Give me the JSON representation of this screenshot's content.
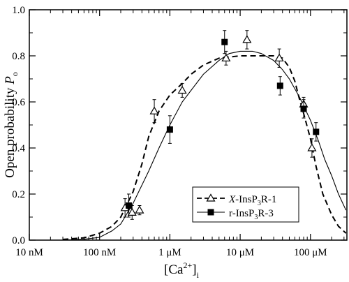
{
  "chart_data": {
    "type": "scatter",
    "xscale": "log",
    "xlim_M": [
      1e-08,
      0.00033
    ],
    "ylim": [
      0,
      1.0
    ],
    "xlabel_main": "[Ca",
    "xlabel_sup": "2+",
    "xlabel_close": "]",
    "xlabel_sub": "i",
    "ylabel_main": "Open probability ",
    "ylabel_italic": "P",
    "ylabel_sub": "o",
    "xticks": [
      {
        "value_M": 1e-08,
        "label": "10 nM"
      },
      {
        "value_M": 1e-07,
        "label": "100 nM"
      },
      {
        "value_M": 1e-06,
        "label": "1 μM"
      },
      {
        "value_M": 1e-05,
        "label": "10 μM"
      },
      {
        "value_M": 0.0001,
        "label": "100 μM"
      }
    ],
    "yticks": [
      {
        "value": 0.0,
        "label": "0.0"
      },
      {
        "value": 0.2,
        "label": "0.2"
      },
      {
        "value": 0.4,
        "label": "0.4"
      },
      {
        "value": 0.6,
        "label": "0.6"
      },
      {
        "value": 0.8,
        "label": "0.8"
      },
      {
        "value": 1.0,
        "label": "1.0"
      }
    ],
    "legend_position": "bottom-right",
    "series": [
      {
        "name_prefix": "X",
        "name_rest": "-InsP",
        "name_sub": "3",
        "name_end": "R-1",
        "marker": "open-triangle",
        "line": "dashed",
        "points": [
          {
            "x_M": 2.3e-07,
            "y": 0.14,
            "err": 0.04
          },
          {
            "x_M": 2.9e-07,
            "y": 0.12,
            "err": 0.03
          },
          {
            "x_M": 3.7e-07,
            "y": 0.13,
            "err": 0.02
          },
          {
            "x_M": 6e-07,
            "y": 0.56,
            "err": 0.05
          },
          {
            "x_M": 1.5e-06,
            "y": 0.65,
            "err": 0.03
          },
          {
            "x_M": 6.3e-06,
            "y": 0.79,
            "err": 0.03
          },
          {
            "x_M": 1.25e-05,
            "y": 0.87,
            "err": 0.04
          },
          {
            "x_M": 3.6e-05,
            "y": 0.79,
            "err": 0.04
          },
          {
            "x_M": 8e-05,
            "y": 0.59,
            "err": 0.03
          },
          {
            "x_M": 0.000105,
            "y": 0.4,
            "err": 0.04
          }
        ],
        "curve": [
          [
            3e-08,
            0.003
          ],
          [
            6e-08,
            0.01
          ],
          [
            1e-07,
            0.03
          ],
          [
            1.5e-07,
            0.06
          ],
          [
            2e-07,
            0.1
          ],
          [
            3e-07,
            0.21
          ],
          [
            4e-07,
            0.33
          ],
          [
            5e-07,
            0.45
          ],
          [
            7e-07,
            0.56
          ],
          [
            1e-06,
            0.63
          ],
          [
            1.5e-06,
            0.68
          ],
          [
            2e-06,
            0.72
          ],
          [
            3e-06,
            0.76
          ],
          [
            5e-06,
            0.79
          ],
          [
            1e-05,
            0.8
          ],
          [
            2e-05,
            0.8
          ],
          [
            3e-05,
            0.8
          ],
          [
            4e-05,
            0.79
          ],
          [
            5e-05,
            0.75
          ],
          [
            6e-05,
            0.69
          ],
          [
            7e-05,
            0.61
          ],
          [
            8e-05,
            0.55
          ],
          [
            0.0001,
            0.44
          ],
          [
            0.00012,
            0.32
          ],
          [
            0.00015,
            0.2
          ],
          [
            0.0002,
            0.11
          ],
          [
            0.00025,
            0.06
          ],
          [
            0.00032,
            0.03
          ]
        ]
      },
      {
        "name_prefix": "",
        "name_rest": "r-InsP",
        "name_sub": "3",
        "name_end": "R-3",
        "marker": "filled-square",
        "line": "solid",
        "points": [
          {
            "x_M": 2.6e-07,
            "y": 0.15,
            "err": 0.05
          },
          {
            "x_M": 1e-06,
            "y": 0.48,
            "err": 0.06
          },
          {
            "x_M": 6e-06,
            "y": 0.86,
            "err": 0.05
          },
          {
            "x_M": 3.7e-05,
            "y": 0.67,
            "err": 0.04
          },
          {
            "x_M": 8e-05,
            "y": 0.57,
            "err": 0.04
          },
          {
            "x_M": 0.00012,
            "y": 0.47,
            "err": 0.04
          }
        ],
        "curve": [
          [
            3e-08,
            0.0
          ],
          [
            6e-08,
            0.004
          ],
          [
            1e-07,
            0.012
          ],
          [
            1.5e-07,
            0.04
          ],
          [
            2e-07,
            0.07
          ],
          [
            3e-07,
            0.16
          ],
          [
            5e-07,
            0.3
          ],
          [
            7e-07,
            0.4
          ],
          [
            1e-06,
            0.5
          ],
          [
            1.5e-06,
            0.6
          ],
          [
            2e-06,
            0.65
          ],
          [
            3e-06,
            0.72
          ],
          [
            5e-06,
            0.78
          ],
          [
            7e-06,
            0.81
          ],
          [
            1e-05,
            0.82
          ],
          [
            1.5e-05,
            0.82
          ],
          [
            2e-05,
            0.81
          ],
          [
            3e-05,
            0.78
          ],
          [
            4e-05,
            0.74
          ],
          [
            5e-05,
            0.7
          ],
          [
            7e-05,
            0.62
          ],
          [
            0.0001,
            0.52
          ],
          [
            0.00013,
            0.43
          ],
          [
            0.00016,
            0.35
          ],
          [
            0.0002,
            0.28
          ],
          [
            0.00025,
            0.2
          ],
          [
            0.00032,
            0.13
          ]
        ]
      }
    ]
  }
}
